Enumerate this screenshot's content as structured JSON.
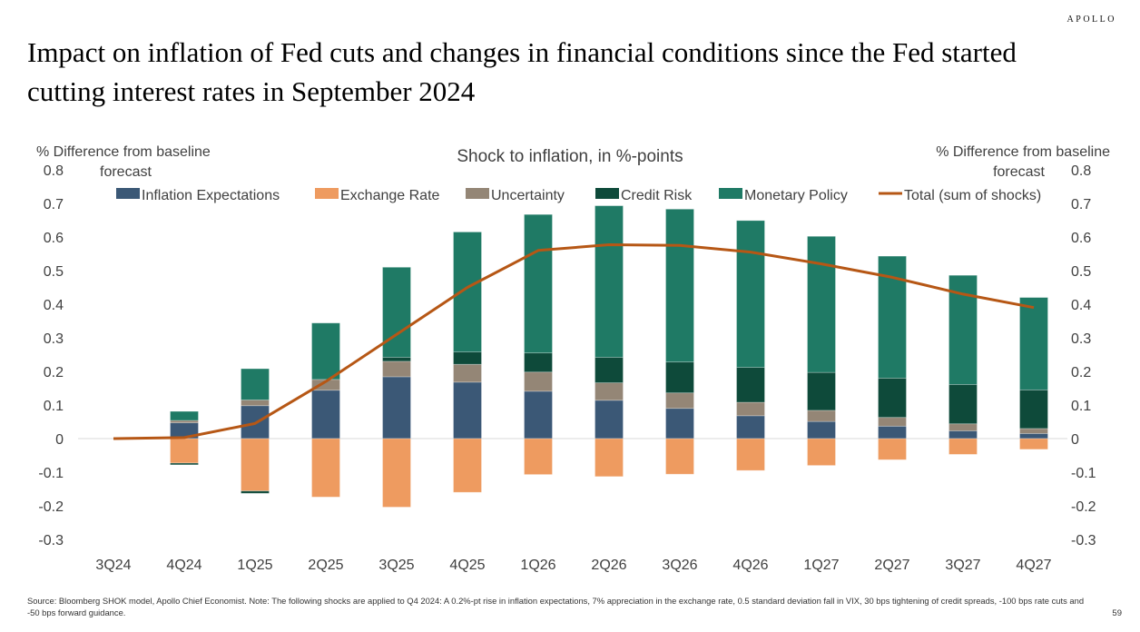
{
  "brand": "APOLLO",
  "title": "Impact on inflation of Fed cuts and changes in financial conditions since the Fed started cutting interest rates in September 2024",
  "footer": "Source: Bloomberg SHOK model, Apollo Chief Economist. Note: The following shocks are applied to Q4 2024: A 0.2%-pt rise in inflation expectations, 7% appreciation in the exchange rate, 0.5 standard deviation fall in VIX, 30 bps tightening of credit spreads, -100 bps rate cuts and -50 bps forward guidance.",
  "page_number": "59",
  "chart_data": {
    "type": "bar",
    "stacked": true,
    "title": "Shock to inflation, in %-points",
    "ylabel_left": "% Difference from baseline forecast",
    "ylabel_right": "% Difference from baseline forecast",
    "ylim": [
      -0.3,
      0.8
    ],
    "yticks": [
      -0.3,
      -0.2,
      -0.1,
      0,
      0.1,
      0.2,
      0.3,
      0.4,
      0.5,
      0.6,
      0.7,
      0.8
    ],
    "ytick_labels": [
      "-0.3",
      "-0.2",
      "-0.1",
      "0",
      "0.1",
      "0.2",
      "0.3",
      "0.4",
      "0.5",
      "0.6",
      "0.7",
      "0.8"
    ],
    "grid": false,
    "legend_position": "top",
    "categories": [
      "3Q24",
      "4Q24",
      "1Q25",
      "2Q25",
      "3Q25",
      "4Q25",
      "1Q26",
      "2Q26",
      "3Q26",
      "4Q26",
      "1Q27",
      "2Q27",
      "3Q27",
      "4Q27"
    ],
    "series": [
      {
        "name": "Inflation Expectations",
        "color": "#3b5876",
        "values": [
          0,
          0.047,
          0.098,
          0.144,
          0.184,
          0.168,
          0.141,
          0.114,
          0.09,
          0.068,
          0.051,
          0.037,
          0.023,
          0.015
        ]
      },
      {
        "name": "Exchange Rate",
        "color": "#ee9b60",
        "values": [
          0,
          -0.073,
          -0.156,
          -0.174,
          -0.204,
          -0.16,
          -0.107,
          -0.113,
          -0.106,
          -0.095,
          -0.08,
          -0.063,
          -0.047,
          -0.032
        ]
      },
      {
        "name": "Uncertainty",
        "color": "#948676",
        "values": [
          0,
          0.007,
          0.017,
          0.032,
          0.046,
          0.053,
          0.057,
          0.052,
          0.046,
          0.04,
          0.033,
          0.026,
          0.021,
          0.015
        ]
      },
      {
        "name": "Credit Risk",
        "color": "#0e4a3a",
        "values": [
          0,
          -0.005,
          -0.007,
          0,
          0.012,
          0.037,
          0.057,
          0.076,
          0.092,
          0.104,
          0.113,
          0.117,
          0.117,
          0.115
        ]
      },
      {
        "name": "Monetary Policy",
        "color": "#1f7a65",
        "values": [
          0,
          0.027,
          0.093,
          0.168,
          0.268,
          0.357,
          0.412,
          0.451,
          0.455,
          0.437,
          0.405,
          0.363,
          0.325,
          0.275
        ]
      }
    ],
    "line": {
      "name": "Total (sum of shocks)",
      "color": "#b65715",
      "values": [
        0,
        0.003,
        0.045,
        0.17,
        0.31,
        0.45,
        0.56,
        0.577,
        0.575,
        0.555,
        0.52,
        0.48,
        0.43,
        0.39
      ]
    }
  }
}
